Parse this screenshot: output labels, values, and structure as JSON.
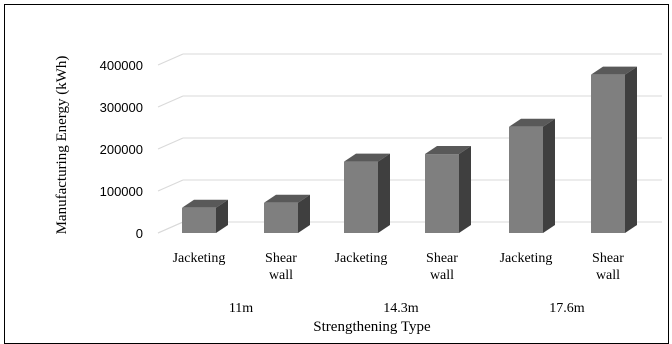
{
  "chart_data": {
    "type": "bar",
    "style": "3d-column",
    "ylabel": "Manufacturing Energy (kWh)",
    "xlabel": "Strengthening Type",
    "categories": [
      "Jacketing",
      "Shear\nwall",
      "Jacketing",
      "Shear\nwall",
      "Jacketing",
      "Shear\nwall"
    ],
    "groups": [
      "11m",
      "14.3m",
      "17.6m"
    ],
    "values": [
      60000,
      72000,
      170000,
      188000,
      253000,
      377000
    ],
    "ylim": [
      0,
      400000
    ],
    "yticks": [
      "0",
      "100000",
      "200000",
      "300000",
      "400000"
    ],
    "grid": true,
    "legend": "none",
    "colors": {
      "bar_front": "#7f7f7f",
      "bar_side": "#3f3f3f",
      "bar_top": "#595959",
      "grid": "#d9d9d9"
    }
  }
}
